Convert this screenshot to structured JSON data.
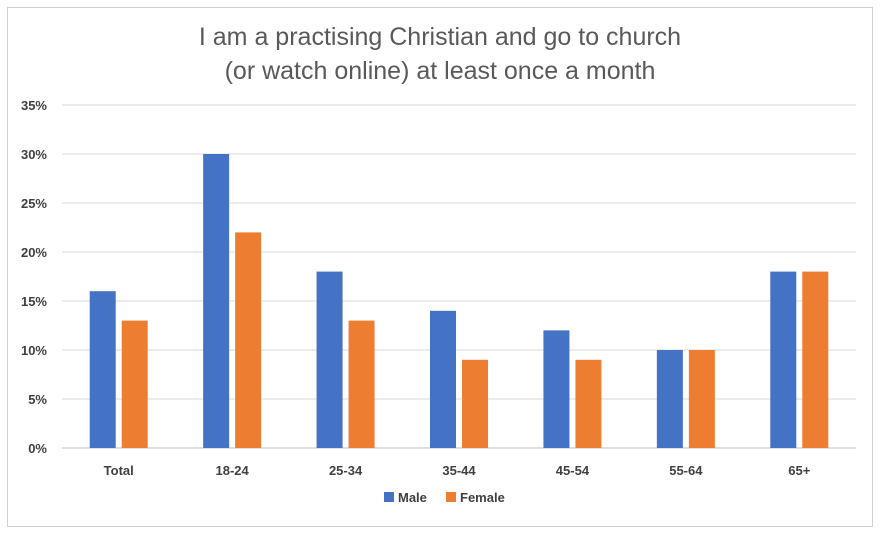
{
  "chart_data": {
    "type": "bar",
    "title_lines": [
      "I am a practising Christian and go to church",
      "(or watch online) at least once a month"
    ],
    "categories": [
      "Total",
      "18-24",
      "25-34",
      "35-44",
      "45-54",
      "55-64",
      "65+"
    ],
    "series": [
      {
        "name": "Male",
        "color": "#4472C4",
        "values": [
          16,
          30,
          18,
          14,
          12,
          10,
          18
        ]
      },
      {
        "name": "Female",
        "color": "#ED7D31",
        "values": [
          13,
          22,
          13,
          9,
          9,
          10,
          18
        ]
      }
    ],
    "yticks": [
      "0%",
      "5%",
      "10%",
      "15%",
      "20%",
      "25%",
      "30%",
      "35%"
    ],
    "ylim": [
      0,
      35
    ],
    "grid": true,
    "legend_position": "bottom"
  }
}
